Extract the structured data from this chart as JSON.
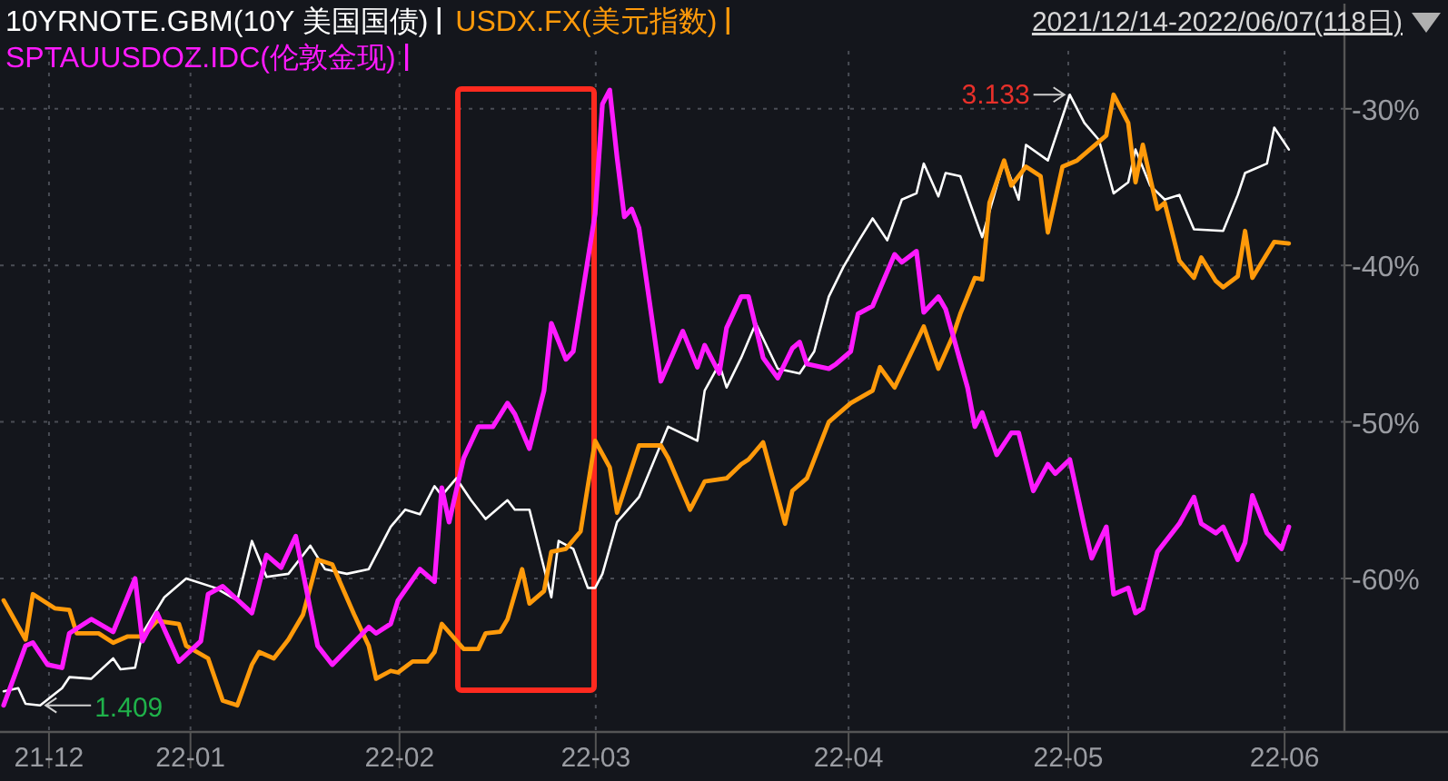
{
  "chart_data": {
    "type": "line",
    "subtitle": "2021/12/14-2022/06/07(118日)",
    "xlim": [
      "2021-12-13T12:00",
      "2022-06-29T19:00"
    ],
    "ylim": [
      -69.8,
      -26.3
    ],
    "xticks": [
      {
        "value": "2021-12-20T05:00",
        "label": "21-12"
      },
      {
        "value": "2022-01-08T14:00",
        "label": "22-01"
      },
      {
        "value": "2022-02-06T05:00",
        "label": "22-02"
      },
      {
        "value": "2022-03-05T02:00",
        "label": "22-03"
      },
      {
        "value": "2022-04-08T17:00",
        "label": "22-04"
      },
      {
        "value": "2022-05-08T19:00",
        "label": "22-05"
      },
      {
        "value": "2022-06-07T10:00",
        "label": "22-06"
      }
    ],
    "yticks": [
      {
        "value": -30,
        "label": "-30%"
      },
      {
        "value": -40,
        "label": "-40%"
      },
      {
        "value": -50,
        "label": "-50%"
      },
      {
        "value": -60,
        "label": "-60%"
      }
    ],
    "grid": true,
    "legend": "top left",
    "annotations": [
      {
        "text": "3.133",
        "x": "2022-05-09",
        "y": -29.1
      },
      {
        "text": "1.409",
        "x": "2021-12-19",
        "y": -68.1
      }
    ],
    "series": [
      {
        "name": "10YRNOTE.GBM(10Y 美国国债)",
        "color": "#ffffff",
        "x": [
          "2021-12-14",
          "2021-12-16",
          "2021-12-17",
          "2021-12-19",
          "2021-12-22",
          "2021-12-23",
          "2021-12-26",
          "2021-12-29",
          "2021-12-30",
          "2022-01-01",
          "2022-01-02",
          "2022-01-05",
          "2022-01-08",
          "2022-01-12",
          "2022-01-15",
          "2022-01-17",
          "2022-01-19",
          "2022-01-22",
          "2022-01-25",
          "2022-01-27",
          "2022-01-30",
          "2022-02-02",
          "2022-02-05",
          "2022-02-07",
          "2022-02-09",
          "2022-02-11",
          "2022-02-12",
          "2022-02-14",
          "2022-02-16",
          "2022-02-18",
          "2022-02-21",
          "2022-02-22",
          "2022-02-24",
          "2022-02-27",
          "2022-02-28",
          "2022-03-02",
          "2022-03-04",
          "2022-03-05",
          "2022-03-06",
          "2022-03-08",
          "2022-03-11",
          "2022-03-15",
          "2022-03-19",
          "2022-03-20",
          "2022-03-22",
          "2022-03-23",
          "2022-03-25",
          "2022-03-27",
          "2022-03-30",
          "2022-04-02",
          "2022-04-04",
          "2022-04-06",
          "2022-04-08",
          "2022-04-10",
          "2022-04-12",
          "2022-04-14",
          "2022-04-16",
          "2022-04-18",
          "2022-04-19",
          "2022-04-21",
          "2022-04-22",
          "2022-04-24",
          "2022-04-27",
          "2022-04-30",
          "2022-05-02",
          "2022-05-03",
          "2022-05-06",
          "2022-05-09",
          "2022-05-11",
          "2022-05-13",
          "2022-05-15",
          "2022-05-17",
          "2022-05-18",
          "2022-05-20",
          "2022-05-22",
          "2022-05-24",
          "2022-05-26",
          "2022-05-30",
          "2022-06-01",
          "2022-06-02",
          "2022-06-05",
          "2022-06-06",
          "2022-06-08"
        ],
        "values": [
          -67.2,
          -67.0,
          -68.0,
          -68.1,
          -67.0,
          -66.3,
          -66.4,
          -65.1,
          -65.8,
          -65.7,
          -63.5,
          -61.2,
          -60.0,
          -60.6,
          -61.4,
          -57.6,
          -59.9,
          -59.7,
          -57.9,
          -59.4,
          -59.7,
          -59.4,
          -56.7,
          -55.6,
          -55.9,
          -54.1,
          -54.7,
          -53.6,
          -55.0,
          -56.2,
          -55.0,
          -55.6,
          -55.6,
          -61.2,
          -57.6,
          -58.1,
          -60.6,
          -60.6,
          -59.7,
          -56.4,
          -54.8,
          -50.3,
          -51.2,
          -48.0,
          -46.3,
          -47.8,
          -45.9,
          -43.7,
          -46.6,
          -46.9,
          -45.5,
          -42.0,
          -40.1,
          -38.5,
          -37.0,
          -38.4,
          -35.8,
          -35.4,
          -33.5,
          -35.6,
          -34.1,
          -34.3,
          -38.2,
          -33.3,
          -35.8,
          -32.3,
          -33.3,
          -29.1,
          -30.9,
          -32.0,
          -35.4,
          -34.7,
          -32.6,
          -34.9,
          -35.8,
          -35.5,
          -37.7,
          -37.8,
          -35.5,
          -34.1,
          -33.5,
          -31.2,
          -32.6
        ]
      },
      {
        "name": "USDX.FX(美元指数)",
        "color": "#ff9a0a",
        "x": [
          "2021-12-14",
          "2021-12-17",
          "2021-12-18",
          "2021-12-21",
          "2021-12-23",
          "2021-12-24",
          "2021-12-27",
          "2021-12-29",
          "2021-12-31",
          "2022-01-02",
          "2022-01-04",
          "2022-01-07",
          "2022-01-08",
          "2022-01-11",
          "2022-01-13",
          "2022-01-15",
          "2022-01-17",
          "2022-01-18",
          "2022-01-20",
          "2022-01-22",
          "2022-01-24",
          "2022-01-26",
          "2022-01-28",
          "2022-01-31",
          "2022-02-02",
          "2022-02-03",
          "2022-02-05",
          "2022-02-06",
          "2022-02-08",
          "2022-02-10",
          "2022-02-11",
          "2022-02-12",
          "2022-02-15",
          "2022-02-17",
          "2022-02-18",
          "2022-02-20",
          "2022-02-21",
          "2022-02-23",
          "2022-02-24",
          "2022-02-26",
          "2022-02-27",
          "2022-03-01",
          "2022-03-03",
          "2022-03-05",
          "2022-03-07",
          "2022-03-08",
          "2022-03-11",
          "2022-03-14",
          "2022-03-15",
          "2022-03-18",
          "2022-03-20",
          "2022-03-23",
          "2022-03-25",
          "2022-03-26",
          "2022-03-28",
          "2022-03-31",
          "2022-04-01",
          "2022-04-03",
          "2022-04-06",
          "2022-04-09",
          "2022-04-12",
          "2022-04-13",
          "2022-04-15",
          "2022-04-19",
          "2022-04-21",
          "2022-04-23",
          "2022-04-24",
          "2022-04-26",
          "2022-04-27",
          "2022-04-28",
          "2022-04-30",
          "2022-05-01",
          "2022-05-03",
          "2022-05-05",
          "2022-05-06",
          "2022-05-08",
          "2022-05-10",
          "2022-05-14",
          "2022-05-15",
          "2022-05-17",
          "2022-05-18",
          "2022-05-19",
          "2022-05-20",
          "2022-05-21",
          "2022-05-22",
          "2022-05-24",
          "2022-05-26",
          "2022-05-27",
          "2022-05-29",
          "2022-05-30",
          "2022-06-01",
          "2022-06-02",
          "2022-06-03",
          "2022-06-06",
          "2022-06-08"
        ],
        "values": [
          -61.4,
          -63.9,
          -61.0,
          -61.9,
          -62.0,
          -63.5,
          -63.5,
          -64.1,
          -63.7,
          -63.7,
          -62.7,
          -62.9,
          -64.3,
          -65.1,
          -67.8,
          -68.1,
          -65.5,
          -64.7,
          -65.1,
          -63.9,
          -62.3,
          -58.8,
          -59.1,
          -62.3,
          -64.3,
          -66.4,
          -65.9,
          -66.0,
          -65.3,
          -65.3,
          -64.7,
          -62.9,
          -64.5,
          -64.5,
          -63.5,
          -63.4,
          -62.6,
          -59.4,
          -61.6,
          -60.8,
          -58.3,
          -58.1,
          -57.0,
          -51.2,
          -52.9,
          -55.8,
          -51.5,
          -51.5,
          -52.3,
          -55.6,
          -53.8,
          -53.6,
          -52.7,
          -52.4,
          -51.3,
          -56.5,
          -54.4,
          -53.6,
          -50.0,
          -48.8,
          -48.0,
          -46.5,
          -47.8,
          -43.9,
          -46.6,
          -44.5,
          -43.1,
          -40.8,
          -40.9,
          -36.0,
          -33.3,
          -34.9,
          -33.7,
          -34.3,
          -37.9,
          -33.7,
          -33.3,
          -31.7,
          -29.1,
          -30.9,
          -34.7,
          -32.3,
          -34.4,
          -36.4,
          -36.0,
          -39.7,
          -40.8,
          -39.5,
          -41.0,
          -41.4,
          -40.7,
          -37.8,
          -40.8,
          -38.5,
          -38.6
        ]
      },
      {
        "name": "SPTAUUSDOZ.IDC(伦敦金现)",
        "color": "#ff1aff",
        "x": [
          "2021-12-14",
          "2021-12-17",
          "2021-12-18",
          "2021-12-20",
          "2021-12-22",
          "2021-12-23",
          "2021-12-26",
          "2021-12-29",
          "2022-01-01",
          "2022-01-02",
          "2022-01-04",
          "2022-01-07",
          "2022-01-10",
          "2022-01-11",
          "2022-01-13",
          "2022-01-17",
          "2022-01-19",
          "2022-01-21",
          "2022-01-23",
          "2022-01-26",
          "2022-01-28",
          "2022-02-02",
          "2022-02-03",
          "2022-02-05",
          "2022-02-06",
          "2022-02-09",
          "2022-02-11",
          "2022-02-12",
          "2022-02-13",
          "2022-02-15",
          "2022-02-17",
          "2022-02-19",
          "2022-02-21",
          "2022-02-22",
          "2022-02-24",
          "2022-02-26",
          "2022-02-27",
          "2022-03-01",
          "2022-03-02",
          "2022-03-05",
          "2022-03-06",
          "2022-03-07",
          "2022-03-08",
          "2022-03-09",
          "2022-03-10",
          "2022-03-11",
          "2022-03-14",
          "2022-03-17",
          "2022-03-19",
          "2022-03-20",
          "2022-03-22",
          "2022-03-23",
          "2022-03-25",
          "2022-03-26",
          "2022-03-28",
          "2022-03-30",
          "2022-04-01",
          "2022-04-02",
          "2022-04-03",
          "2022-04-06",
          "2022-04-07",
          "2022-04-09",
          "2022-04-10",
          "2022-04-12",
          "2022-04-15",
          "2022-04-16",
          "2022-04-18",
          "2022-04-19",
          "2022-04-21",
          "2022-04-22",
          "2022-04-25",
          "2022-04-26",
          "2022-04-27",
          "2022-04-29",
          "2022-05-01",
          "2022-05-02",
          "2022-05-04",
          "2022-05-06",
          "2022-05-07",
          "2022-05-09",
          "2022-05-11",
          "2022-05-12",
          "2022-05-14",
          "2022-05-15",
          "2022-05-17",
          "2022-05-18",
          "2022-05-19",
          "2022-05-21",
          "2022-05-24",
          "2022-05-26",
          "2022-05-27",
          "2022-05-29",
          "2022-05-30",
          "2022-06-01",
          "2022-06-02",
          "2022-06-03",
          "2022-06-05",
          "2022-06-07",
          "2022-06-08"
        ],
        "values": [
          -68.1,
          -64.3,
          -64.1,
          -65.5,
          -65.7,
          -63.5,
          -62.6,
          -63.4,
          -60.0,
          -64.0,
          -62.2,
          -65.3,
          -64.0,
          -61.0,
          -60.5,
          -62.2,
          -58.5,
          -59.3,
          -57.3,
          -64.3,
          -65.5,
          -63.1,
          -63.5,
          -62.9,
          -61.4,
          -59.4,
          -60.2,
          -54.2,
          -56.4,
          -52.3,
          -50.3,
          -50.3,
          -48.8,
          -49.5,
          -51.7,
          -48.0,
          -43.7,
          -46.0,
          -45.5,
          -36.7,
          -29.7,
          -28.8,
          -33.1,
          -36.9,
          -36.4,
          -37.6,
          -47.4,
          -44.2,
          -46.5,
          -45.1,
          -46.9,
          -44.0,
          -42.0,
          -42.0,
          -45.9,
          -47.2,
          -45.3,
          -44.9,
          -46.3,
          -46.6,
          -46.3,
          -45.5,
          -43.1,
          -42.6,
          -39.3,
          -39.8,
          -39.1,
          -43.0,
          -42.0,
          -42.8,
          -47.8,
          -50.3,
          -49.4,
          -52.1,
          -50.7,
          -50.7,
          -54.4,
          -52.7,
          -53.3,
          -52.4,
          -56.7,
          -58.7,
          -56.7,
          -61.0,
          -60.6,
          -62.2,
          -61.9,
          -58.3,
          -56.5,
          -54.8,
          -56.5,
          -57.1,
          -56.7,
          -58.8,
          -57.7,
          -54.7,
          -57.1,
          -58.1,
          -56.7
        ]
      }
    ]
  }
}
